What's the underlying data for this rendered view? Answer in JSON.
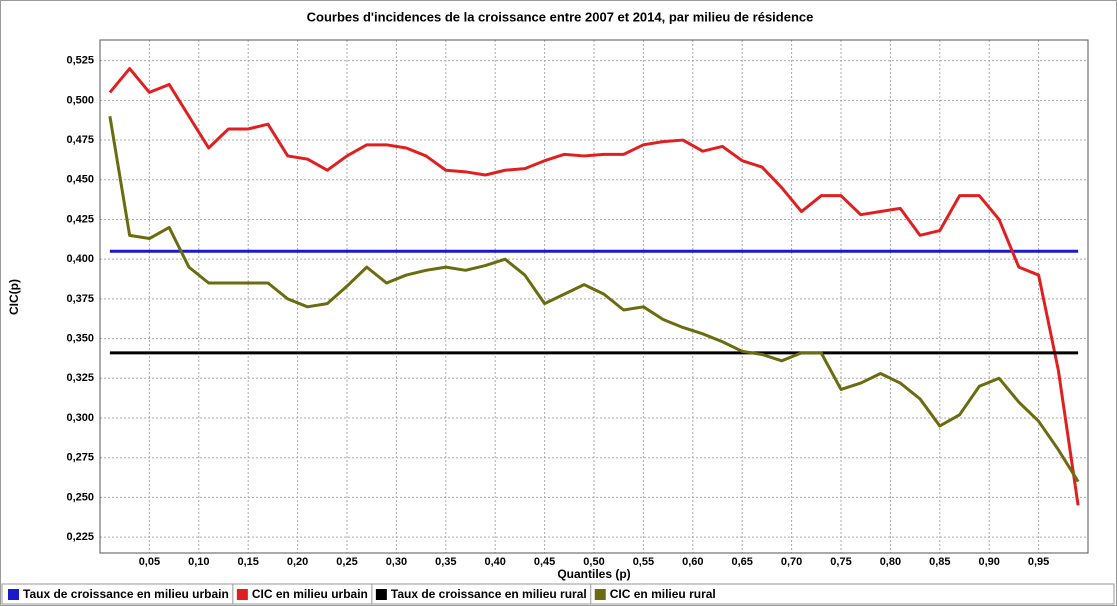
{
  "chart_data": {
    "type": "line",
    "title": "Courbes d'incidences de la croissance entre 2007 et 2014, par milieu de résidence",
    "x_label": "Quantiles (p)",
    "y_label": "CIC(p)",
    "x": [
      0.01,
      0.03,
      0.05,
      0.07,
      0.09,
      0.11,
      0.13,
      0.15,
      0.17,
      0.19,
      0.21,
      0.23,
      0.25,
      0.27,
      0.29,
      0.31,
      0.33,
      0.35,
      0.37,
      0.39,
      0.41,
      0.43,
      0.45,
      0.47,
      0.49,
      0.51,
      0.53,
      0.55,
      0.57,
      0.59,
      0.61,
      0.63,
      0.65,
      0.67,
      0.69,
      0.71,
      0.73,
      0.75,
      0.77,
      0.79,
      0.81,
      0.83,
      0.85,
      0.87,
      0.89,
      0.91,
      0.93,
      0.95,
      0.97,
      0.99
    ],
    "series": [
      {
        "name": "Taux de croissance en milieu urbain",
        "color": "#1a1acc",
        "values": [
          0.405,
          0.405,
          0.405,
          0.405,
          0.405,
          0.405,
          0.405,
          0.405,
          0.405,
          0.405,
          0.405,
          0.405,
          0.405,
          0.405,
          0.405,
          0.405,
          0.405,
          0.405,
          0.405,
          0.405,
          0.405,
          0.405,
          0.405,
          0.405,
          0.405,
          0.405,
          0.405,
          0.405,
          0.405,
          0.405,
          0.405,
          0.405,
          0.405,
          0.405,
          0.405,
          0.405,
          0.405,
          0.405,
          0.405,
          0.405,
          0.405,
          0.405,
          0.405,
          0.405,
          0.405,
          0.405,
          0.405,
          0.405,
          0.405,
          0.405
        ]
      },
      {
        "name": "CIC en milieu urbain",
        "color": "#e02020",
        "values": [
          0.505,
          0.52,
          0.505,
          0.51,
          0.49,
          0.47,
          0.482,
          0.482,
          0.485,
          0.465,
          0.463,
          0.456,
          0.465,
          0.472,
          0.472,
          0.47,
          0.465,
          0.456,
          0.455,
          0.453,
          0.456,
          0.457,
          0.462,
          0.466,
          0.465,
          0.466,
          0.466,
          0.472,
          0.474,
          0.475,
          0.468,
          0.471,
          0.462,
          0.458,
          0.445,
          0.43,
          0.44,
          0.44,
          0.428,
          0.43,
          0.432,
          0.415,
          0.418,
          0.44,
          0.44,
          0.425,
          0.395,
          0.39,
          0.33,
          0.245
        ]
      },
      {
        "name": "Taux de croissance en milieu rural",
        "color": "#000000",
        "values": [
          0.341,
          0.341,
          0.341,
          0.341,
          0.341,
          0.341,
          0.341,
          0.341,
          0.341,
          0.341,
          0.341,
          0.341,
          0.341,
          0.341,
          0.341,
          0.341,
          0.341,
          0.341,
          0.341,
          0.341,
          0.341,
          0.341,
          0.341,
          0.341,
          0.341,
          0.341,
          0.341,
          0.341,
          0.341,
          0.341,
          0.341,
          0.341,
          0.341,
          0.341,
          0.341,
          0.341,
          0.341,
          0.341,
          0.341,
          0.341,
          0.341,
          0.341,
          0.341,
          0.341,
          0.341,
          0.341,
          0.341,
          0.341,
          0.341,
          0.341
        ]
      },
      {
        "name": "CIC en milieu rural",
        "color": "#6b6b10",
        "values": [
          0.49,
          0.415,
          0.413,
          0.42,
          0.395,
          0.385,
          0.385,
          0.385,
          0.385,
          0.375,
          0.37,
          0.372,
          0.383,
          0.395,
          0.385,
          0.39,
          0.393,
          0.395,
          0.393,
          0.396,
          0.4,
          0.39,
          0.372,
          0.378,
          0.384,
          0.378,
          0.368,
          0.37,
          0.362,
          0.357,
          0.353,
          0.348,
          0.342,
          0.34,
          0.336,
          0.341,
          0.341,
          0.318,
          0.322,
          0.328,
          0.322,
          0.312,
          0.295,
          0.302,
          0.32,
          0.325,
          0.31,
          0.298,
          0.28,
          0.26
        ]
      }
    ],
    "xlim": [
      0,
      1
    ],
    "ylim": [
      0.215,
      0.538
    ],
    "xticks": [
      {
        "value": 0.05,
        "label": "0,05"
      },
      {
        "value": 0.1,
        "label": "0,10"
      },
      {
        "value": 0.15,
        "label": "0,15"
      },
      {
        "value": 0.2,
        "label": "0,20"
      },
      {
        "value": 0.25,
        "label": "0,25"
      },
      {
        "value": 0.3,
        "label": "0,30"
      },
      {
        "value": 0.35,
        "label": "0,35"
      },
      {
        "value": 0.4,
        "label": "0,40"
      },
      {
        "value": 0.45,
        "label": "0,45"
      },
      {
        "value": 0.5,
        "label": "0,50"
      },
      {
        "value": 0.55,
        "label": "0,55"
      },
      {
        "value": 0.6,
        "label": "0,60"
      },
      {
        "value": 0.65,
        "label": "0,65"
      },
      {
        "value": 0.7,
        "label": "0,70"
      },
      {
        "value": 0.75,
        "label": "0,75"
      },
      {
        "value": 0.8,
        "label": "0,80"
      },
      {
        "value": 0.85,
        "label": "0,85"
      },
      {
        "value": 0.9,
        "label": "0,90"
      },
      {
        "value": 0.95,
        "label": "0,95"
      }
    ],
    "yticks": [
      {
        "value": 0.225,
        "label": "0,225"
      },
      {
        "value": 0.25,
        "label": "0,250"
      },
      {
        "value": 0.275,
        "label": "0,275"
      },
      {
        "value": 0.3,
        "label": "0,300"
      },
      {
        "value": 0.325,
        "label": "0,325"
      },
      {
        "value": 0.35,
        "label": "0,350"
      },
      {
        "value": 0.375,
        "label": "0,375"
      },
      {
        "value": 0.4,
        "label": "0,400"
      },
      {
        "value": 0.425,
        "label": "0,425"
      },
      {
        "value": 0.45,
        "label": "0,450"
      },
      {
        "value": 0.475,
        "label": "0,475"
      },
      {
        "value": 0.5,
        "label": "0,500"
      },
      {
        "value": 0.525,
        "label": "0,525"
      }
    ],
    "grid": true,
    "legend": "bottom"
  }
}
